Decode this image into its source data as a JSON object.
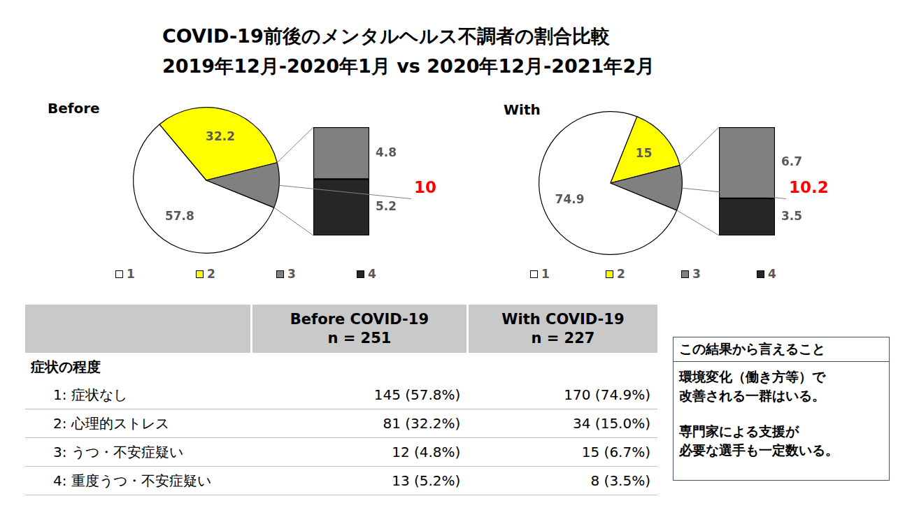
{
  "title": [
    "COVID-19前後のメンタルヘルス不調者の割合比較",
    "2019年12月-2020年1月 vs 2020年12月-2021年2月"
  ],
  "chart_data": [
    {
      "type": "pie",
      "title": "Before",
      "categories": [
        "1",
        "2",
        "3",
        "4"
      ],
      "values": [
        57.8,
        32.2,
        4.8,
        5.2
      ],
      "colors": [
        "#ffffff",
        "#ffff00",
        "#808080",
        "#262626"
      ],
      "split": [
        "3",
        "4"
      ],
      "split_total": 10,
      "data_labels": true,
      "legend": "bottom"
    },
    {
      "type": "pie",
      "title": "With",
      "categories": [
        "1",
        "2",
        "3",
        "4"
      ],
      "values": [
        74.9,
        15,
        6.7,
        3.5
      ],
      "colors": [
        "#ffffff",
        "#ffff00",
        "#808080",
        "#262626"
      ],
      "split": [
        "3",
        "4"
      ],
      "split_total": 10.2,
      "data_labels": true,
      "legend": "bottom"
    }
  ],
  "table": {
    "columns": [
      [
        "Before COVID-19",
        "n = 251"
      ],
      [
        "With COVID-19",
        "n = 227"
      ]
    ],
    "section": "症状の程度",
    "rows": [
      [
        "1: 症状なし",
        "145 (57.8%)",
        "170 (74.9%)"
      ],
      [
        "2: 心理的ストレス",
        "81 (32.2%)",
        "34 (15.0%)"
      ],
      [
        "3: うつ・不安症疑い",
        "12 (4.8%)",
        "15 (6.7%)"
      ],
      [
        "4: 重度うつ・不安症疑い",
        "13 (5.2%)",
        "8 (3.5%)"
      ]
    ]
  },
  "note": {
    "title": "この結果から言えること",
    "paragraphs": [
      [
        "環境変化（働き方等）で",
        "改善される一群はいる。"
      ],
      [
        "専門家による支援が",
        "必要な選手も一定数いる。"
      ]
    ]
  }
}
